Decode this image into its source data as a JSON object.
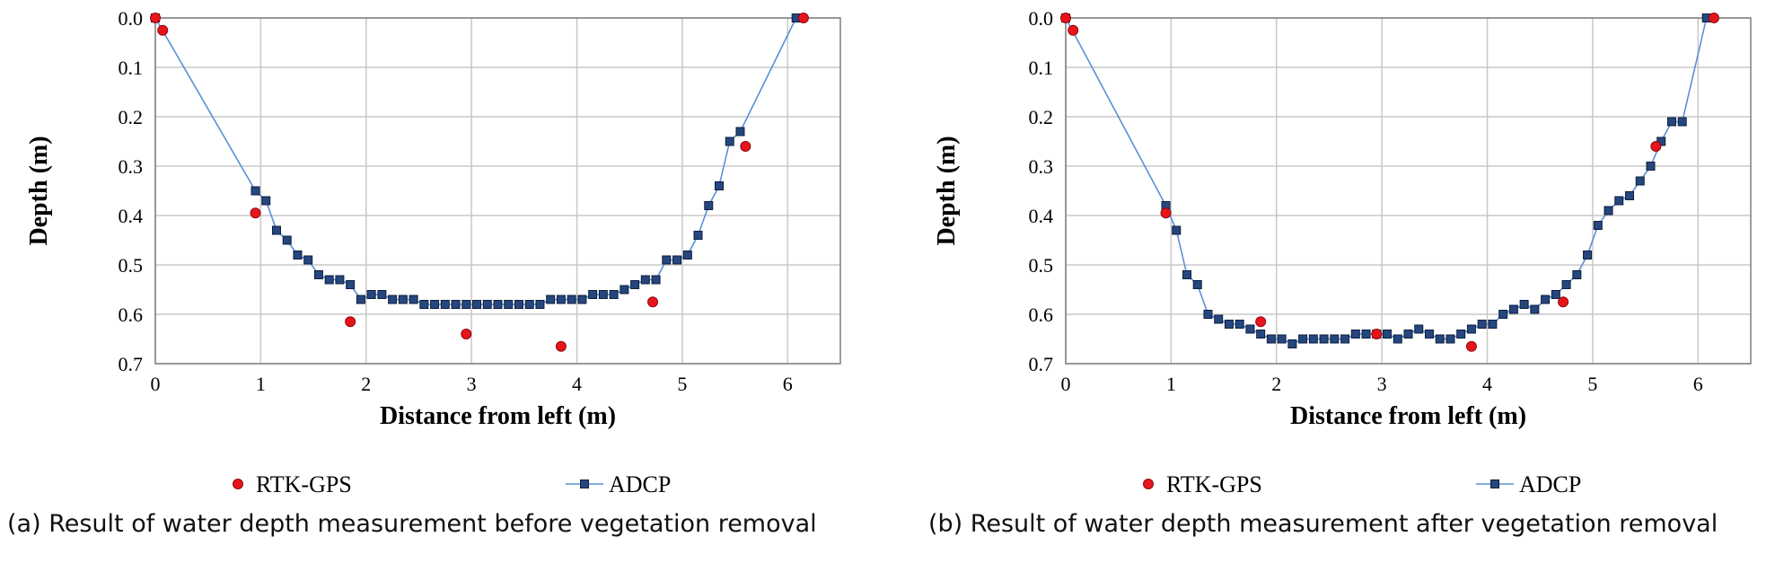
{
  "chart_data": [
    {
      "type": "scatter",
      "caption": "(a) Result of water depth measurement before vegetation removal",
      "xlabel": "Distance from left (m)",
      "ylabel": "Depth (m)",
      "xlim": [
        0,
        6.5
      ],
      "ylim": [
        0,
        0.7
      ],
      "y_inverted": true,
      "xticks": [
        "0",
        "1",
        "2",
        "3",
        "4",
        "5",
        "6"
      ],
      "yticks": [
        "0.0",
        "0.1",
        "0.2",
        "0.3",
        "0.4",
        "0.5",
        "0.6",
        "0.7"
      ],
      "grid": true,
      "legend": "bottom",
      "colors": {
        "rtk": "#e8141c",
        "adcp_line": "#5b8fd6",
        "adcp_marker": "#26467e"
      },
      "series": [
        {
          "name": "RTK-GPS",
          "style": "markers",
          "x": [
            0.0,
            0.07,
            0.95,
            1.85,
            2.95,
            3.85,
            4.72,
            5.6,
            6.15
          ],
          "y": [
            0.0,
            0.025,
            0.395,
            0.615,
            0.64,
            0.665,
            0.575,
            0.26,
            0.0
          ]
        },
        {
          "name": "ADCP",
          "style": "line-markers",
          "x": [
            0.0,
            0.95,
            1.05,
            1.15,
            1.25,
            1.35,
            1.45,
            1.55,
            1.65,
            1.75,
            1.85,
            1.95,
            2.05,
            2.15,
            2.25,
            2.35,
            2.45,
            2.55,
            2.65,
            2.75,
            2.85,
            2.95,
            3.05,
            3.15,
            3.25,
            3.35,
            3.45,
            3.55,
            3.65,
            3.75,
            3.85,
            3.95,
            4.05,
            4.15,
            4.25,
            4.35,
            4.45,
            4.55,
            4.65,
            4.75,
            4.85,
            4.95,
            5.05,
            5.15,
            5.25,
            5.35,
            5.45,
            5.55,
            6.08
          ],
          "y": [
            0.0,
            0.35,
            0.37,
            0.43,
            0.45,
            0.48,
            0.49,
            0.52,
            0.53,
            0.53,
            0.54,
            0.57,
            0.56,
            0.56,
            0.57,
            0.57,
            0.57,
            0.58,
            0.58,
            0.58,
            0.58,
            0.58,
            0.58,
            0.58,
            0.58,
            0.58,
            0.58,
            0.58,
            0.58,
            0.57,
            0.57,
            0.57,
            0.57,
            0.56,
            0.56,
            0.56,
            0.55,
            0.54,
            0.53,
            0.53,
            0.49,
            0.49,
            0.48,
            0.44,
            0.38,
            0.34,
            0.25,
            0.23,
            0.0
          ]
        }
      ]
    },
    {
      "type": "scatter",
      "caption": "(b) Result of water depth measurement after vegetation removal",
      "xlabel": "Distance from left (m)",
      "ylabel": "Depth (m)",
      "xlim": [
        0,
        6.5
      ],
      "ylim": [
        0,
        0.7
      ],
      "y_inverted": true,
      "xticks": [
        "0",
        "1",
        "2",
        "3",
        "4",
        "5",
        "6"
      ],
      "yticks": [
        "0.0",
        "0.1",
        "0.2",
        "0.3",
        "0.4",
        "0.5",
        "0.6",
        "0.7"
      ],
      "grid": true,
      "legend": "bottom",
      "colors": {
        "rtk": "#e8141c",
        "adcp_line": "#5b8fd6",
        "adcp_marker": "#26467e"
      },
      "series": [
        {
          "name": "RTK-GPS",
          "style": "markers",
          "x": [
            0.0,
            0.07,
            0.95,
            1.85,
            2.95,
            3.85,
            4.72,
            5.6,
            6.15
          ],
          "y": [
            0.0,
            0.025,
            0.395,
            0.615,
            0.64,
            0.665,
            0.575,
            0.26,
            0.0
          ]
        },
        {
          "name": "ADCP",
          "style": "line-markers",
          "x": [
            0.0,
            0.95,
            1.05,
            1.15,
            1.25,
            1.35,
            1.45,
            1.55,
            1.65,
            1.75,
            1.85,
            1.95,
            2.05,
            2.15,
            2.25,
            2.35,
            2.45,
            2.55,
            2.65,
            2.75,
            2.85,
            2.95,
            3.05,
            3.15,
            3.25,
            3.35,
            3.45,
            3.55,
            3.65,
            3.75,
            3.85,
            3.95,
            4.05,
            4.15,
            4.25,
            4.35,
            4.45,
            4.55,
            4.65,
            4.75,
            4.85,
            4.95,
            5.05,
            5.15,
            5.25,
            5.35,
            5.45,
            5.55,
            5.65,
            5.75,
            5.85,
            6.08
          ],
          "y": [
            0.0,
            0.38,
            0.43,
            0.52,
            0.54,
            0.6,
            0.61,
            0.62,
            0.62,
            0.63,
            0.64,
            0.65,
            0.65,
            0.66,
            0.65,
            0.65,
            0.65,
            0.65,
            0.65,
            0.64,
            0.64,
            0.64,
            0.64,
            0.65,
            0.64,
            0.63,
            0.64,
            0.65,
            0.65,
            0.64,
            0.63,
            0.62,
            0.62,
            0.6,
            0.59,
            0.58,
            0.59,
            0.57,
            0.56,
            0.54,
            0.52,
            0.48,
            0.42,
            0.39,
            0.37,
            0.36,
            0.33,
            0.3,
            0.25,
            0.21,
            0.21,
            0.0
          ]
        }
      ]
    }
  ]
}
